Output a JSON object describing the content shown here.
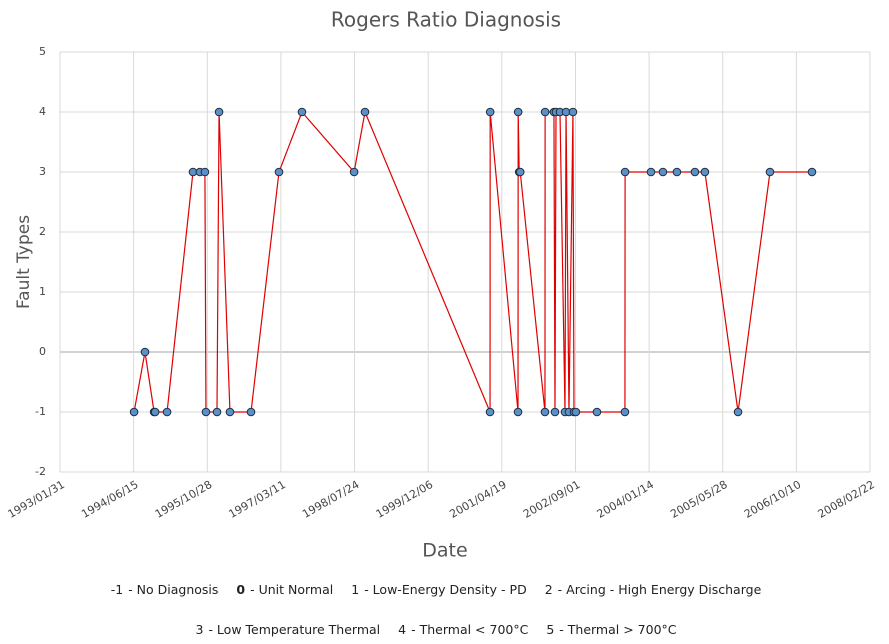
{
  "chart_data": {
    "type": "line",
    "title": "Rogers Ratio Diagnosis",
    "x_label": "Date",
    "y_label": "Fault Types",
    "x": [
      "1994/06/18",
      "1994/08/31",
      "1994/11/01",
      "1994/11/08",
      "1995/01/28",
      "1995/07/23",
      "1995/09/08",
      "1995/10/12",
      "1995/10/19",
      "1996/01/02",
      "1996/01/16",
      "1996/03/30",
      "1996/08/20",
      "1997/02/26",
      "1997/08/01",
      "1998/07/21",
      "1998/10/03",
      "2001/01/29",
      "2001/01/30",
      "2001/08/07",
      "2001/08/08",
      "2001/08/15",
      "2001/08/22",
      "2002/02/06",
      "2002/02/07",
      "2002/04/08",
      "2002/04/15",
      "2002/04/22",
      "2002/05/19",
      "2002/06/22",
      "2002/06/29",
      "2002/07/19",
      "2002/08/15",
      "2002/08/22",
      "2002/09/04",
      "2003/01/25",
      "2003/08/03",
      "2003/08/04",
      "2004/01/27",
      "2004/04/17",
      "2004/07/21",
      "2004/11/20",
      "2005/01/27",
      "2005/09/09",
      "2006/04/14",
      "2007/01/24"
    ],
    "series": [
      {
        "name": "Fault Type",
        "color": "#e00000",
        "marker_color": "#5b8fc7",
        "values": [
          -1,
          0,
          -1,
          -1,
          -1,
          3,
          3,
          3,
          -1,
          -1,
          4,
          -1,
          -1,
          3,
          4,
          3,
          4,
          -1,
          4,
          -1,
          4,
          3,
          3,
          -1,
          4,
          4,
          -1,
          4,
          4,
          -1,
          4,
          -1,
          4,
          -1,
          -1,
          -1,
          -1,
          3,
          3,
          3,
          3,
          3,
          3,
          -1,
          3,
          3
        ]
      }
    ],
    "xlim": [
      "1993/01/31",
      "2008/02/22"
    ],
    "xticks": [
      "1993/01/31",
      "1994/06/15",
      "1995/10/28",
      "1997/03/11",
      "1998/07/24",
      "1999/12/06",
      "2001/04/19",
      "2002/09/01",
      "2004/01/14",
      "2005/05/28",
      "2006/10/10",
      "2008/02/22"
    ],
    "ylim": [
      -2,
      5
    ],
    "yticks": [
      -2,
      -1,
      0,
      1,
      2,
      3,
      4,
      5
    ],
    "grid": true,
    "legend_notes": [
      [
        {
          "code": "-1",
          "label": "- No Diagnosis"
        },
        {
          "code": "0",
          "label": "- Unit Normal",
          "bold_code": true
        },
        {
          "code": "1",
          "label": "- Low-Energy Density - PD"
        },
        {
          "code": "2",
          "label": "- Arcing - High Energy Discharge"
        }
      ],
      [
        {
          "code": "3",
          "label": "- Low Temperature Thermal"
        },
        {
          "code": "4",
          "label": "- Thermal < 700°C"
        },
        {
          "code": "5",
          "label": "- Thermal > 700°C"
        }
      ]
    ]
  }
}
